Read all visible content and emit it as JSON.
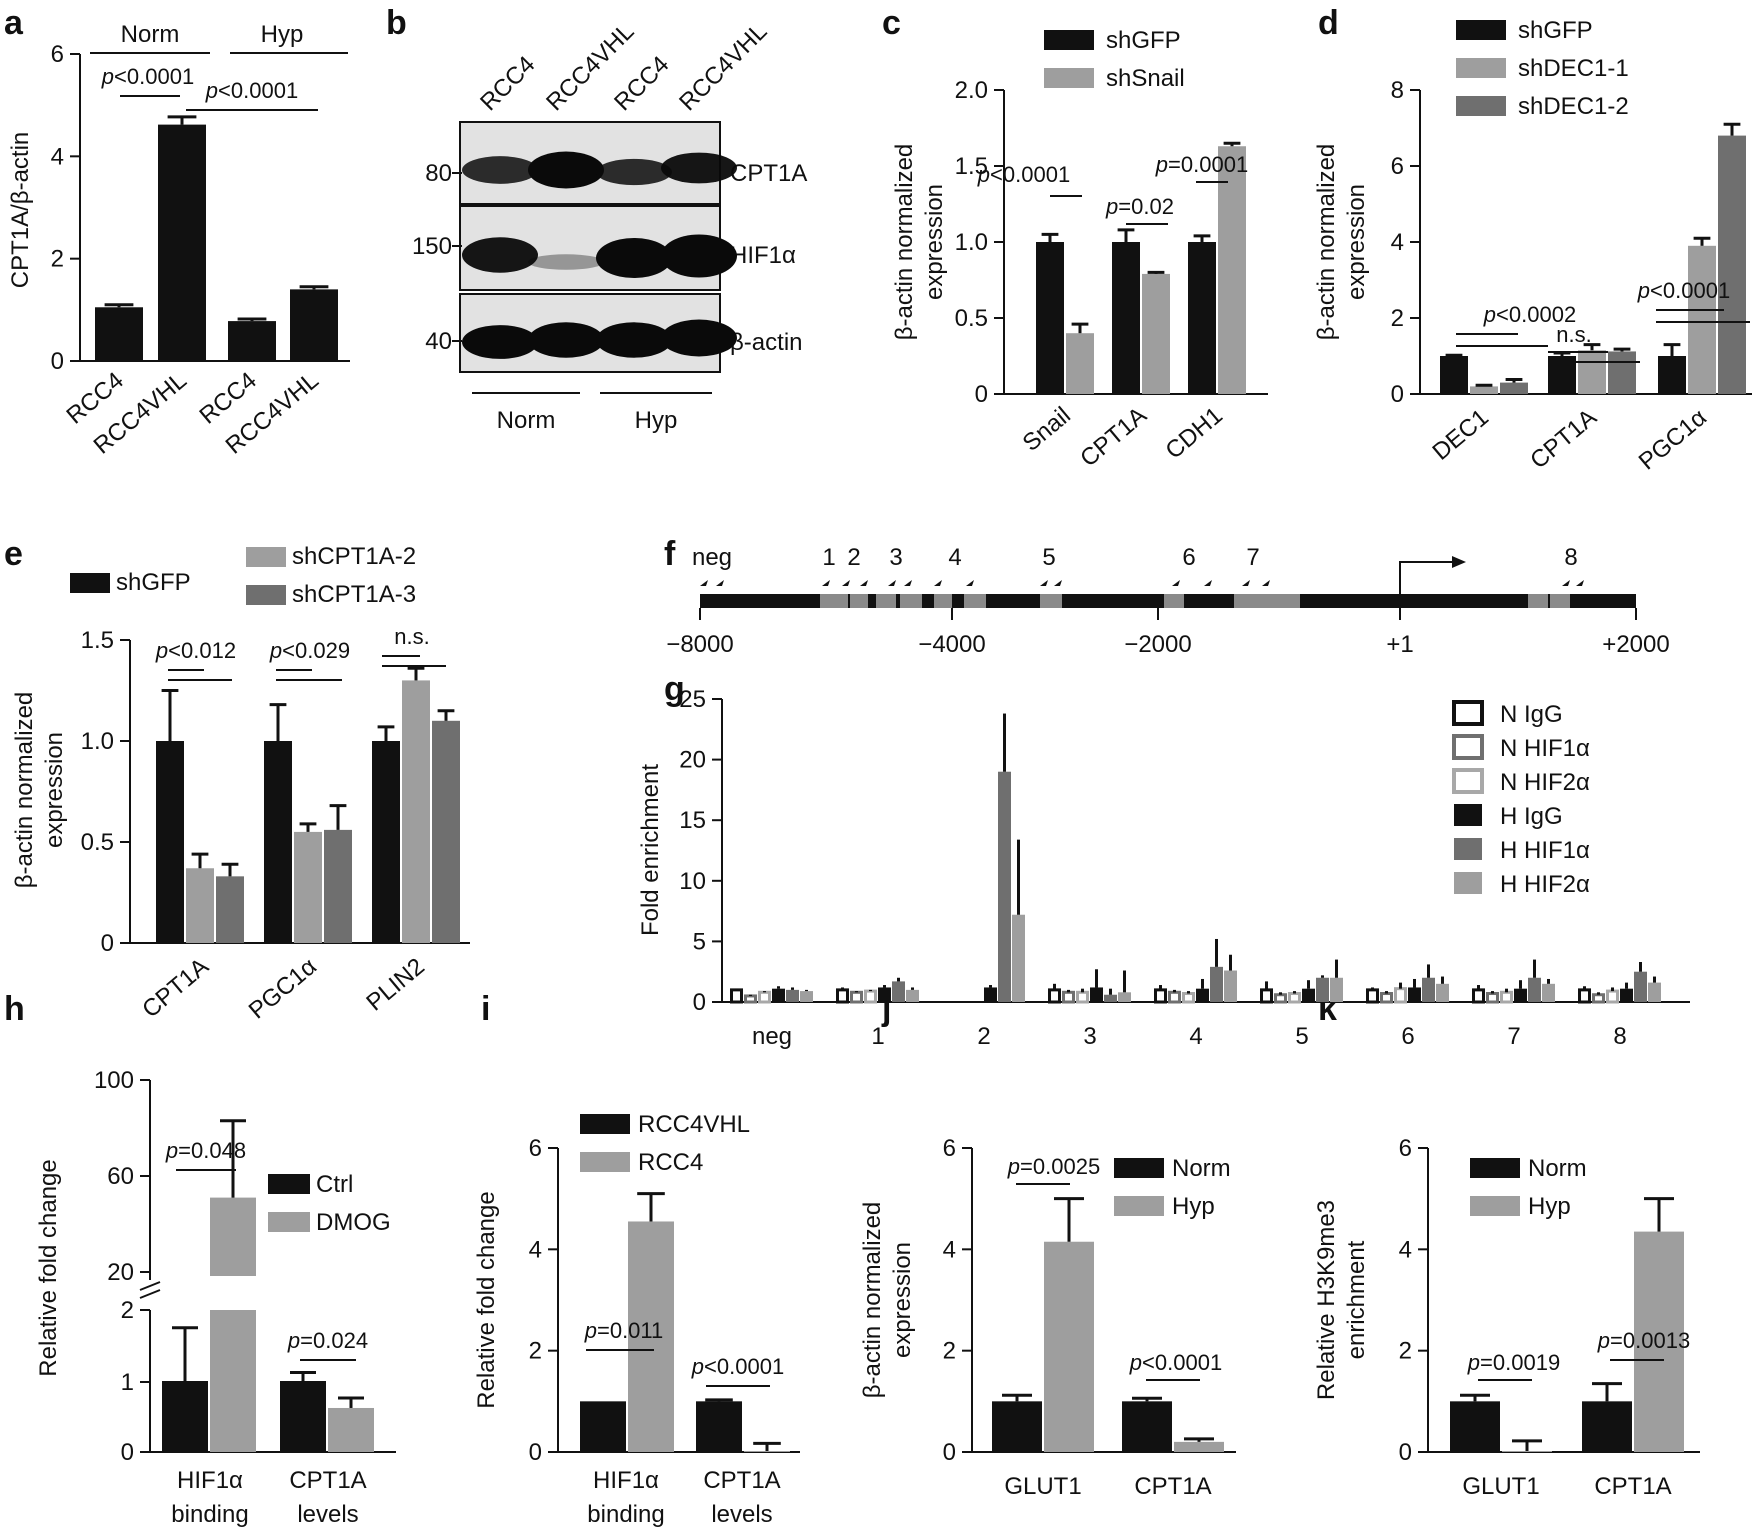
{
  "colors": {
    "black": "#111111",
    "light": "#9e9e9e",
    "mid": "#6f6f6f",
    "white": "#ffffff"
  },
  "panel_labels": [
    "a",
    "b",
    "c",
    "d",
    "e",
    "f",
    "g",
    "h",
    "i",
    "j",
    "k"
  ],
  "chart_data": [
    {
      "panel": "a",
      "type": "bar",
      "ylabel": "CPT1A/β-actin",
      "ylim": [
        0,
        6
      ],
      "yticks": [
        "0",
        "2",
        "4",
        "6"
      ],
      "categories": [
        "RCC4",
        "RCC4VHL",
        "RCC4",
        "RCC4VHL"
      ],
      "values": [
        1.05,
        4.62,
        0.78,
        1.4
      ],
      "errors": [
        0.05,
        0.15,
        0.04,
        0.05
      ],
      "groups": [
        "Norm",
        "Hyp"
      ],
      "pvalues": [
        {
          "p": "<0.0001"
        },
        {
          "p": "<0.0001"
        }
      ]
    },
    {
      "panel": "b",
      "type": "table",
      "lanes": [
        "RCC4",
        "RCC4VHL",
        "RCC4",
        "RCC4VHL"
      ],
      "rows": [
        {
          "marker": "80",
          "label": "CPT1A"
        },
        {
          "marker": "150",
          "label": "HIF1α"
        },
        {
          "marker": "40",
          "label": "β-actin"
        }
      ],
      "conditions": [
        "Norm",
        "Hyp"
      ]
    },
    {
      "panel": "c",
      "type": "bar",
      "ylabel": [
        "β-actin normalized",
        "expression"
      ],
      "ylim": [
        0,
        2.0
      ],
      "yticks": [
        "0",
        "0.5",
        "1.0",
        "1.5",
        "2.0"
      ],
      "categories": [
        "Snail",
        "CPT1A",
        "CDH1"
      ],
      "series": [
        {
          "name": "shGFP",
          "values": [
            1.0,
            1.0,
            1.0
          ],
          "errors": [
            0.05,
            0.08,
            0.04
          ]
        },
        {
          "name": "shSnail",
          "values": [
            0.4,
            0.79,
            1.63
          ],
          "errors": [
            0.06,
            0.01,
            0.02
          ]
        }
      ],
      "pvalues": [
        {
          "p": "<0.0001"
        },
        {
          "p": "=0.02"
        },
        {
          "p": "=0.0001"
        }
      ]
    },
    {
      "panel": "d",
      "type": "bar",
      "ylabel": [
        "β-actin normalized",
        "expression"
      ],
      "ylim": [
        0,
        8
      ],
      "yticks": [
        "0",
        "2",
        "4",
        "6",
        "8"
      ],
      "categories": [
        "DEC1",
        "CPT1A",
        "PGC1α"
      ],
      "series": [
        {
          "name": "shGFP",
          "values": [
            1.0,
            1.0,
            1.0
          ],
          "errors": [
            0.02,
            0.08,
            0.3
          ]
        },
        {
          "name": "shDEC1-1",
          "values": [
            0.2,
            1.15,
            3.9
          ],
          "errors": [
            0.03,
            0.15,
            0.2
          ]
        },
        {
          "name": "shDEC1-2",
          "values": [
            0.3,
            1.12,
            6.8
          ],
          "errors": [
            0.08,
            0.06,
            0.3
          ]
        }
      ],
      "pvalues": [
        {
          "p": "<0.0002"
        },
        {
          "p": "n.s."
        },
        {
          "p": "<0.0001"
        }
      ]
    },
    {
      "panel": "e",
      "type": "bar",
      "ylabel": [
        "β-actin normalized",
        "expression"
      ],
      "ylim": [
        0,
        1.5
      ],
      "yticks": [
        "0",
        "0.5",
        "1.0",
        "1.5"
      ],
      "categories": [
        "CPT1A",
        "PGC1α",
        "PLIN2"
      ],
      "series": [
        {
          "name": "shGFP",
          "values": [
            1.0,
            1.0,
            1.0
          ],
          "errors": [
            0.25,
            0.18,
            0.07
          ]
        },
        {
          "name": "shCPT1A-2",
          "values": [
            0.37,
            0.55,
            1.3
          ],
          "errors": [
            0.07,
            0.04,
            0.06
          ]
        },
        {
          "name": "shCPT1A-3",
          "values": [
            0.33,
            0.56,
            1.1
          ],
          "errors": [
            0.06,
            0.12,
            0.05
          ]
        }
      ],
      "pvalues": [
        {
          "p": "<0.012"
        },
        {
          "p": "<0.029"
        },
        {
          "p": "n.s."
        }
      ]
    },
    {
      "panel": "f",
      "type": "diagram",
      "sites": [
        "neg",
        "1",
        "2",
        "3",
        "4",
        "5",
        "6",
        "7",
        "8"
      ],
      "axis_ticks": [
        "−8000",
        "−4000",
        "−2000",
        "+1",
        "+2000"
      ],
      "tss": "+1"
    },
    {
      "panel": "g",
      "type": "bar",
      "ylabel": "Fold enrichment",
      "ylim": [
        0,
        25
      ],
      "yticks": [
        "0",
        "5",
        "10",
        "15",
        "20",
        "25"
      ],
      "categories": [
        "neg",
        "1",
        "2",
        "3",
        "4",
        "5",
        "6",
        "7",
        "8"
      ],
      "series": [
        {
          "name": "N IgG",
          "values": [
            1.0,
            1.0,
            0,
            1.0,
            1.0,
            1.0,
            1.0,
            1.0,
            1.0
          ],
          "errors": [
            0.1,
            0.2,
            0,
            0.5,
            0.4,
            0.7,
            0.2,
            0.4,
            0.3
          ]
        },
        {
          "name": "N HIF1α",
          "values": [
            0.5,
            0.8,
            0,
            0.8,
            0.8,
            0.6,
            0.7,
            0.7,
            0.6
          ],
          "errors": [
            0.1,
            0.1,
            0,
            0.2,
            0.2,
            0.2,
            0.2,
            0.2,
            0.2
          ]
        },
        {
          "name": "N HIF2α",
          "values": [
            0.8,
            0.9,
            0,
            0.8,
            0.7,
            0.7,
            1.1,
            0.8,
            0.9
          ],
          "errors": [
            0.1,
            0.1,
            0,
            0.3,
            0.2,
            0.2,
            0.5,
            0.3,
            0.3
          ]
        },
        {
          "name": "H IgG",
          "values": [
            1.1,
            1.2,
            1.2,
            1.2,
            1.1,
            1.1,
            1.2,
            1.1,
            1.1
          ],
          "errors": [
            0.2,
            0.2,
            0.2,
            1.5,
            0.8,
            0.7,
            0.7,
            0.7,
            0.5
          ]
        },
        {
          "name": "H HIF1α",
          "values": [
            1.0,
            1.7,
            19.0,
            0.6,
            2.9,
            2.0,
            2.0,
            2.0,
            2.5
          ],
          "errors": [
            0.2,
            0.3,
            4.8,
            0.5,
            2.3,
            0.2,
            1.1,
            1.5,
            0.8
          ]
        },
        {
          "name": "H HIF2α",
          "values": [
            0.9,
            1.0,
            7.2,
            0.8,
            2.6,
            2.0,
            1.5,
            1.5,
            1.6
          ],
          "errors": [
            0.1,
            0.2,
            6.2,
            1.8,
            1.3,
            1.5,
            0.6,
            0.4,
            0.5
          ]
        }
      ]
    },
    {
      "panel": "h",
      "type": "bar",
      "ylabel": "Relative fold change",
      "yticks_low": [
        "0",
        "1",
        "2"
      ],
      "yticks_high": [
        "20",
        "60",
        "100"
      ],
      "categories": [
        [
          "HIF1α",
          "binding"
        ],
        [
          "CPT1A",
          "levels"
        ]
      ],
      "series": [
        {
          "name": "Ctrl",
          "values": [
            1.0,
            1.0
          ],
          "errors": [
            0.75,
            0.12
          ]
        },
        {
          "name": "DMOG",
          "values": [
            51,
            0.62
          ],
          "errors": [
            32,
            0.14
          ]
        }
      ],
      "pvalues": [
        {
          "p": "=0.048"
        },
        {
          "p": "=0.024"
        }
      ]
    },
    {
      "panel": "i",
      "type": "bar",
      "ylabel": "Relative fold change",
      "ylim": [
        0,
        6
      ],
      "yticks": [
        "0",
        "2",
        "4",
        "6"
      ],
      "categories": [
        [
          "HIF1α",
          "binding"
        ],
        [
          "CPT1A",
          "levels"
        ]
      ],
      "series": [
        {
          "name": "RCC4VHL",
          "values": [
            1.0,
            1.0
          ],
          "errors": [
            0,
            0.03
          ]
        },
        {
          "name": "RCC4",
          "values": [
            4.55,
            0.02
          ],
          "errors": [
            0.55,
            0.15
          ]
        }
      ],
      "pvalues": [
        {
          "p": "=0.011"
        },
        {
          "p": "<0.0001"
        }
      ]
    },
    {
      "panel": "j",
      "type": "bar",
      "ylabel": [
        "β-actin normalized",
        "expression"
      ],
      "ylim": [
        0,
        6
      ],
      "yticks": [
        "0",
        "2",
        "4",
        "6"
      ],
      "categories": [
        "GLUT1",
        "CPT1A"
      ],
      "series": [
        {
          "name": "Norm",
          "values": [
            1.0,
            1.0
          ],
          "errors": [
            0.12,
            0.06
          ]
        },
        {
          "name": "Hyp",
          "values": [
            4.15,
            0.2
          ],
          "errors": [
            0.85,
            0.06
          ]
        }
      ],
      "pvalues": [
        {
          "p": "=0.0025"
        },
        {
          "p": "<0.0001"
        }
      ]
    },
    {
      "panel": "k",
      "type": "bar",
      "ylabel": [
        "Relative H3K9me3",
        "enrichment"
      ],
      "ylim": [
        0,
        6
      ],
      "yticks": [
        "0",
        "2",
        "4",
        "6"
      ],
      "categories": [
        "GLUT1",
        "CPT1A"
      ],
      "series": [
        {
          "name": "Norm",
          "values": [
            1.0,
            1.0
          ],
          "errors": [
            0.12,
            0.35
          ]
        },
        {
          "name": "Hyp",
          "values": [
            0.02,
            4.35
          ],
          "errors": [
            0.2,
            0.65
          ]
        }
      ],
      "pvalues": [
        {
          "p": "=0.0019"
        },
        {
          "p": "=0.0013"
        }
      ]
    }
  ]
}
